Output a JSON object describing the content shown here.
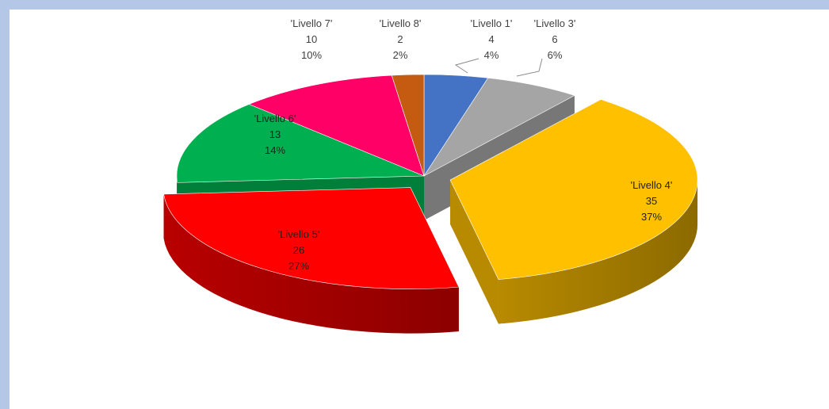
{
  "chart_data": {
    "type": "pie",
    "style": "3d-exploded",
    "legend": "none",
    "slices": [
      {
        "name": "'Livello 1'",
        "value": 4,
        "percent": "4%",
        "color": "#4472c4"
      },
      {
        "name": "'Livello 3'",
        "value": 6,
        "percent": "6%",
        "color": "#a5a5a5"
      },
      {
        "name": "'Livello 4'",
        "value": 35,
        "percent": "37%",
        "color": "#ffc000"
      },
      {
        "name": "'Livello 5'",
        "value": 26,
        "percent": "27%",
        "color": "#ff0000"
      },
      {
        "name": "'Livello 6'",
        "value": 13,
        "percent": "14%",
        "color": "#00b050"
      },
      {
        "name": "'Livello 7'",
        "value": 10,
        "percent": "10%",
        "color": "#ff0066"
      },
      {
        "name": "'Livello 8'",
        "value": 2,
        "percent": "2%",
        "color": "#c55a11"
      }
    ]
  }
}
